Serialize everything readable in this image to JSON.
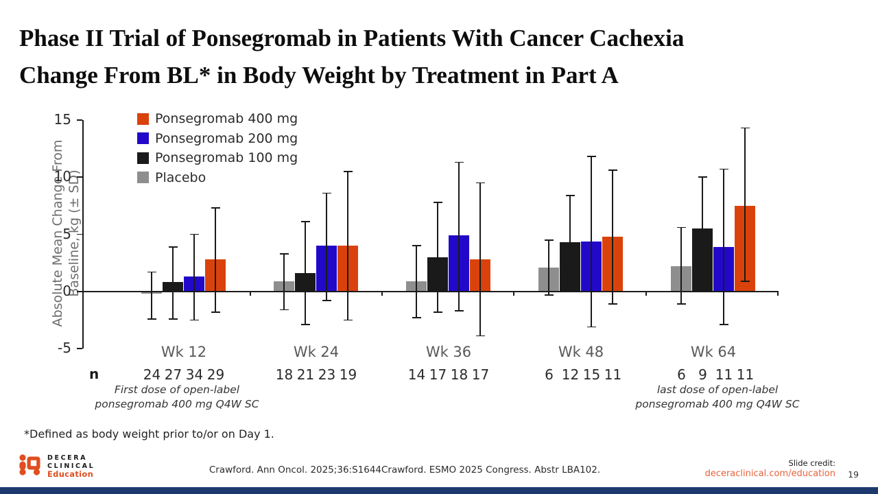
{
  "slide": {
    "title_line1": "Phase II Trial of Ponsegromab in Patients With Cancer Cachexia",
    "title_line2": "Change From BL* in Body Weight by Treatment in Part A",
    "footnote": "*Defined as body weight prior to/or on Day 1.",
    "citation": "Crawford. Ann Oncol. 2025;36:S1644Crawford. ESMO 2025 Congress. Abstr LBA102.",
    "slide_credit_label": "Slide credit:",
    "slide_credit_link": "deceraclinical.com/education",
    "page_number": "19",
    "logo_line1": "DECERA",
    "logo_line2": "CLINICAL",
    "logo_line3": "Education",
    "colors": {
      "accent_orange": "#e04e1f",
      "link_orange": "#e8613b",
      "bottom_bar_navy": "#1c3a6e"
    }
  },
  "chart_data": {
    "type": "bar",
    "title": "",
    "ylabel_line1": "Absolute Mean Change From",
    "ylabel_line2": "Baseline, kg (± SD)",
    "ylim": [
      -5,
      15
    ],
    "yticks": [
      15,
      10,
      5,
      0,
      -5
    ],
    "grid": "off",
    "legend_position": "top-left",
    "categories": [
      "Wk 12",
      "Wk 24",
      "Wk 36",
      "Wk 48",
      "Wk 64"
    ],
    "legend": [
      {
        "name": "Ponsegromab 400 mg",
        "color": "#d9430b"
      },
      {
        "name": "Ponsegromab 200 mg",
        "color": "#2209c9"
      },
      {
        "name": "Ponsegromab 100 mg",
        "color": "#1a1a1a"
      },
      {
        "name": "Placebo",
        "color": "#8e8e8e"
      }
    ],
    "series": [
      {
        "name": "Placebo",
        "color": "#8e8e8e",
        "values": [
          -0.2,
          0.9,
          0.9,
          2.1,
          2.2
        ],
        "err_high": [
          1.7,
          3.3,
          4.0,
          4.5,
          5.6
        ],
        "err_low": [
          -2.4,
          -1.6,
          -2.3,
          -0.3,
          -1.1
        ]
      },
      {
        "name": "Ponsegromab 100 mg",
        "color": "#1a1a1a",
        "values": [
          0.8,
          1.6,
          3.0,
          4.3,
          5.5
        ],
        "err_high": [
          3.9,
          6.1,
          7.8,
          8.4,
          10.0
        ],
        "err_low": [
          -2.4,
          -2.9,
          -1.8,
          0.2,
          1.0
        ]
      },
      {
        "name": "Ponsegromab 200 mg",
        "color": "#2209c9",
        "values": [
          1.3,
          4.0,
          4.9,
          4.35,
          3.9
        ],
        "err_high": [
          5.0,
          8.6,
          11.3,
          11.8,
          10.7
        ],
        "err_low": [
          -2.5,
          -0.8,
          -1.7,
          -3.1,
          -2.9
        ]
      },
      {
        "name": "Ponsegromab 400 mg",
        "color": "#d9430b",
        "values": [
          2.8,
          4.0,
          2.8,
          4.8,
          7.5
        ],
        "err_high": [
          7.3,
          10.5,
          9.5,
          10.6,
          14.3
        ],
        "err_low": [
          -1.8,
          -2.5,
          -3.9,
          -1.1,
          0.9
        ]
      }
    ],
    "n_label": "n",
    "n_values": [
      [
        "24",
        "27",
        "34",
        "29"
      ],
      [
        "18",
        "21",
        "23",
        "19"
      ],
      [
        "14",
        "17",
        "18",
        "17"
      ],
      [
        "6",
        "12",
        "15",
        "11"
      ],
      [
        "6",
        "9",
        "11",
        "11"
      ]
    ],
    "annotation_left_line1": "First dose of open-label",
    "annotation_left_line2": "ponsegromab 400 mg Q4W SC",
    "annotation_right_line1": "last dose of open-label",
    "annotation_right_line2": "ponsegromab 400 mg Q4W SC"
  }
}
